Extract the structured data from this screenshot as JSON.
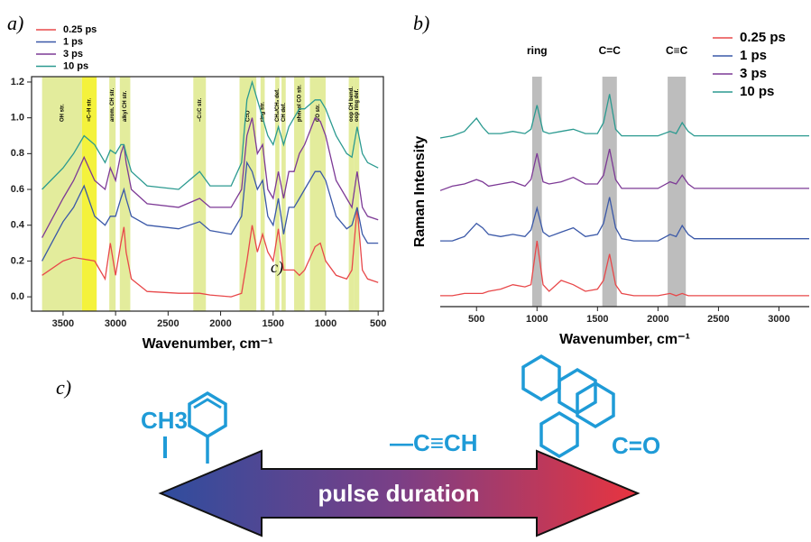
{
  "chart_data": [
    {
      "type": "line",
      "panel": "a)",
      "xlabel": "Wavenumber, cm⁻¹",
      "xlim": [
        3800,
        450
      ],
      "ylim": [
        -0.08,
        1.23
      ],
      "xticks": [
        3500,
        3000,
        2500,
        2000,
        1500,
        1000,
        500
      ],
      "yticks": [
        {
          "value": 0,
          "label": "0.0"
        },
        0.2,
        0.4,
        0.6,
        0.8,
        {
          "value": 1,
          "label": "1.0"
        },
        1.2
      ],
      "legend": "top-left",
      "annotation": "c)",
      "bands": [
        {
          "label": "OH str.",
          "range": [
            3700,
            3320
          ],
          "color": "#e3ec9c"
        },
        {
          "label": "≡C–H str.",
          "range": [
            3320,
            3180
          ],
          "color": "#f4f23c"
        },
        {
          "label": "arom. CH str.",
          "range": [
            3060,
            3000
          ],
          "color": "#e3ec9c"
        },
        {
          "label": "alkyl CH str.",
          "range": [
            2960,
            2860
          ],
          "color": "#e3ec9c"
        },
        {
          "label": "–C≡C str.",
          "range": [
            2260,
            2140
          ],
          "color": "#e3ec9c"
        },
        {
          "label": "C=O",
          "range": [
            1820,
            1660
          ],
          "color": "#e3ec9c"
        },
        {
          "label": "ring str.",
          "range": [
            1620,
            1580
          ],
          "color": "#e3ec9c"
        },
        {
          "label": "CH₂/CH₃ def.",
          "range": [
            1480,
            1440
          ],
          "color": "#e3ec9c"
        },
        {
          "label": "CH def.",
          "range": [
            1420,
            1380
          ],
          "color": "#e3ec9c"
        },
        {
          "label": "phenol CO str.",
          "range": [
            1300,
            1200
          ],
          "color": "#e3ec9c"
        },
        {
          "label": "CO str.",
          "range": [
            1150,
            1000
          ],
          "color": "#e3ec9c"
        },
        {
          "label": "oop CH bend.",
          "range": [
            780,
            730
          ],
          "color": "#e3ec9c"
        },
        {
          "label": "oop ring def.",
          "range": [
            730,
            680
          ],
          "color": "#e3ec9c"
        }
      ],
      "x": [
        3700,
        3500,
        3400,
        3300,
        3200,
        3100,
        3050,
        3000,
        2950,
        2920,
        2900,
        2850,
        2700,
        2400,
        2200,
        2100,
        1900,
        1800,
        1750,
        1700,
        1650,
        1600,
        1550,
        1500,
        1450,
        1400,
        1350,
        1300,
        1250,
        1200,
        1100,
        1050,
        1000,
        900,
        800,
        750,
        700,
        650,
        600,
        500
      ],
      "series": [
        {
          "name": "0.25 ps",
          "color": "#e8484a",
          "values": [
            0.12,
            0.2,
            0.22,
            0.21,
            0.2,
            0.1,
            0.3,
            0.12,
            0.3,
            0.39,
            0.25,
            0.1,
            0.03,
            0.02,
            0.02,
            0.01,
            0.0,
            0.02,
            0.2,
            0.4,
            0.25,
            0.35,
            0.25,
            0.2,
            0.38,
            0.15,
            0.15,
            0.15,
            0.12,
            0.15,
            0.28,
            0.3,
            0.2,
            0.12,
            0.1,
            0.15,
            0.5,
            0.15,
            0.1,
            0.08
          ]
        },
        {
          "name": "1 ps",
          "color": "#3a58a8",
          "values": [
            0.2,
            0.42,
            0.5,
            0.62,
            0.45,
            0.4,
            0.45,
            0.45,
            0.55,
            0.6,
            0.55,
            0.45,
            0.4,
            0.38,
            0.42,
            0.37,
            0.35,
            0.45,
            0.75,
            0.7,
            0.6,
            0.65,
            0.45,
            0.4,
            0.55,
            0.35,
            0.5,
            0.5,
            0.55,
            0.6,
            0.7,
            0.7,
            0.65,
            0.45,
            0.38,
            0.4,
            0.5,
            0.35,
            0.3,
            0.3
          ]
        },
        {
          "name": "3 ps",
          "color": "#7d3a96",
          "values": [
            0.33,
            0.55,
            0.65,
            0.78,
            0.65,
            0.6,
            0.72,
            0.65,
            0.8,
            0.85,
            0.75,
            0.6,
            0.52,
            0.5,
            0.55,
            0.5,
            0.5,
            0.6,
            0.9,
            1.0,
            0.8,
            0.85,
            0.6,
            0.55,
            0.7,
            0.55,
            0.7,
            0.7,
            0.8,
            0.85,
            1.0,
            0.98,
            0.9,
            0.65,
            0.55,
            0.5,
            0.7,
            0.5,
            0.45,
            0.43
          ]
        },
        {
          "name": "10 ps",
          "color": "#2b9a90",
          "values": [
            0.6,
            0.72,
            0.8,
            0.9,
            0.85,
            0.75,
            0.82,
            0.8,
            0.85,
            0.85,
            0.8,
            0.7,
            0.62,
            0.6,
            0.7,
            0.62,
            0.62,
            0.75,
            1.1,
            1.2,
            1.1,
            1.0,
            0.9,
            0.85,
            0.95,
            0.85,
            0.95,
            1.0,
            1.05,
            1.05,
            1.1,
            1.1,
            1.05,
            0.9,
            0.8,
            0.78,
            0.95,
            0.8,
            0.75,
            0.72
          ]
        }
      ]
    },
    {
      "type": "line",
      "panel": "b)",
      "xlabel": "Wavenumber, cm⁻¹",
      "ylabel": "Raman Intensity",
      "xlim": [
        200,
        3250
      ],
      "ylim": [
        0,
        1.05
      ],
      "xticks": [
        500,
        1000,
        1500,
        2000,
        2500,
        3000
      ],
      "legend": "top-right",
      "bands": [
        {
          "label": "ring",
          "range": [
            960,
            1040
          ],
          "color": "#bdbdbd"
        },
        {
          "label": "C=C",
          "range": [
            1540,
            1660
          ],
          "color": "#bdbdbd"
        },
        {
          "label": "C≡C",
          "range": [
            2080,
            2230
          ],
          "color": "#bdbdbd"
        }
      ],
      "x": [
        200,
        300,
        400,
        500,
        550,
        600,
        700,
        800,
        900,
        950,
        1000,
        1050,
        1100,
        1200,
        1300,
        1400,
        1500,
        1550,
        1600,
        1650,
        1700,
        1800,
        1900,
        2000,
        2100,
        2150,
        2200,
        2250,
        2300,
        2500,
        2800,
        3000,
        3250
      ],
      "series": [
        {
          "name": "0.25 ps",
          "color": "#e8484a",
          "values": [
            0.05,
            0.05,
            0.06,
            0.06,
            0.06,
            0.07,
            0.08,
            0.1,
            0.09,
            0.1,
            0.3,
            0.1,
            0.07,
            0.12,
            0.1,
            0.07,
            0.08,
            0.12,
            0.24,
            0.1,
            0.06,
            0.05,
            0.05,
            0.05,
            0.06,
            0.05,
            0.06,
            0.05,
            0.05,
            0.05,
            0.05,
            0.05,
            0.05
          ]
        },
        {
          "name": "1 ps",
          "color": "#3a58a8",
          "values": [
            0.3,
            0.3,
            0.32,
            0.38,
            0.36,
            0.33,
            0.32,
            0.33,
            0.32,
            0.35,
            0.45,
            0.34,
            0.32,
            0.34,
            0.36,
            0.32,
            0.33,
            0.38,
            0.5,
            0.36,
            0.31,
            0.3,
            0.3,
            0.3,
            0.33,
            0.32,
            0.37,
            0.33,
            0.31,
            0.31,
            0.31,
            0.31,
            0.31
          ]
        },
        {
          "name": "3 ps",
          "color": "#7d3a96",
          "values": [
            0.53,
            0.55,
            0.56,
            0.58,
            0.57,
            0.55,
            0.56,
            0.57,
            0.55,
            0.58,
            0.7,
            0.57,
            0.56,
            0.57,
            0.59,
            0.56,
            0.56,
            0.6,
            0.72,
            0.58,
            0.54,
            0.54,
            0.54,
            0.54,
            0.57,
            0.56,
            0.6,
            0.56,
            0.54,
            0.54,
            0.54,
            0.54,
            0.54
          ]
        },
        {
          "name": "10 ps",
          "color": "#2b9a90",
          "values": [
            0.77,
            0.78,
            0.8,
            0.86,
            0.82,
            0.79,
            0.79,
            0.8,
            0.79,
            0.81,
            0.92,
            0.8,
            0.79,
            0.8,
            0.81,
            0.79,
            0.79,
            0.84,
            0.97,
            0.81,
            0.78,
            0.78,
            0.78,
            0.78,
            0.8,
            0.79,
            0.84,
            0.8,
            0.78,
            0.78,
            0.78,
            0.78,
            0.78
          ]
        }
      ]
    }
  ],
  "diagram": {
    "panel": "c)",
    "methyl": "CH3",
    "alkyne": "—C≡CH",
    "carbonyl": "C=O",
    "arrow_text": "pulse duration"
  }
}
